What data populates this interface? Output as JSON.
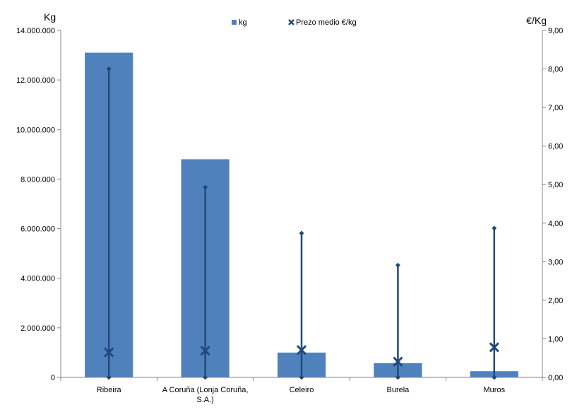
{
  "chart_data": {
    "type": "bar",
    "categories": [
      [
        "Ribeira"
      ],
      [
        "A Coruña (Lonja Coruña,",
        "S.A.)"
      ],
      [
        "Celeiro"
      ],
      [
        "Burela"
      ],
      [
        "Muros"
      ]
    ],
    "series": [
      {
        "name": "kg",
        "axis": "left",
        "type": "bar",
        "color": "#4F81BD",
        "values": [
          13100000,
          8800000,
          1000000,
          570000,
          250000
        ]
      },
      {
        "name": "Prezo medio €/kg",
        "axis": "right",
        "type": "scatter",
        "marker": "x",
        "color": "#1F497D",
        "values": [
          0.65,
          0.69,
          0.71,
          0.41,
          0.78
        ]
      }
    ],
    "range_lines": {
      "axis": "right",
      "color": "#1F497D",
      "marker": "diamond",
      "low": [
        0.0,
        0.0,
        0.0,
        0.0,
        0.0
      ],
      "high": [
        8.0,
        4.93,
        3.74,
        2.91,
        3.87
      ]
    },
    "left_axis": {
      "label": "Kg",
      "ticks": [
        "0",
        "2.000.000",
        "4.000.000",
        "6.000.000",
        "8.000.000",
        "10.000.000",
        "12.000.000",
        "14.000.000"
      ],
      "ylim": [
        0,
        14000000
      ]
    },
    "right_axis": {
      "label": "€/Kg",
      "ticks": [
        "0,00",
        "1,00",
        "2,00",
        "3,00",
        "4,00",
        "5,00",
        "6,00",
        "7,00",
        "8,00",
        "9,00"
      ],
      "ylim": [
        0,
        9
      ]
    },
    "legend_position": "top-center",
    "grid": false
  }
}
